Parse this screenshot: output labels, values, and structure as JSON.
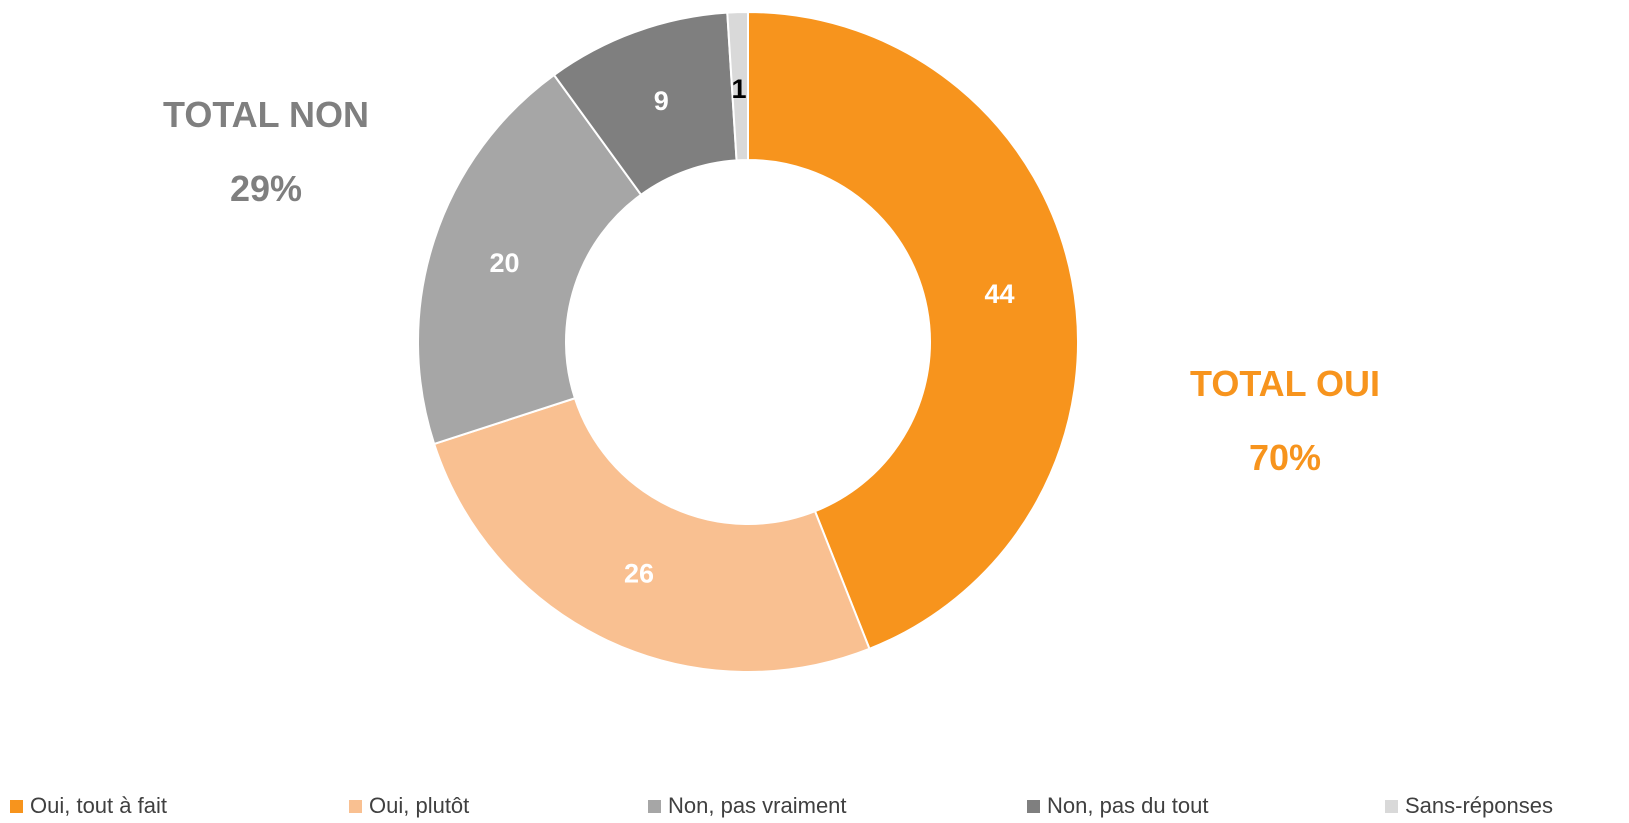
{
  "chart_data": {
    "type": "pie",
    "variant": "donut",
    "categories": [
      "Oui, tout à fait",
      "Oui, plutôt",
      "Non, pas vraiment",
      "Non, pas du tout",
      "Sans-réponses"
    ],
    "values": [
      44,
      26,
      20,
      9,
      1
    ],
    "colors": [
      "#f7941d",
      "#f9c091",
      "#a6a6a6",
      "#7f7f7f",
      "#d9d9d9"
    ],
    "label_colors": [
      "#ffffff",
      "#ffffff",
      "#ffffff",
      "#ffffff",
      "#000000"
    ],
    "legend_position": "bottom",
    "annotations": [
      {
        "label": "TOTAL NON",
        "value": "29%",
        "color": "#7f7f7f"
      },
      {
        "label": "TOTAL OUI",
        "value": "70%",
        "color": "#f7941d"
      }
    ]
  }
}
